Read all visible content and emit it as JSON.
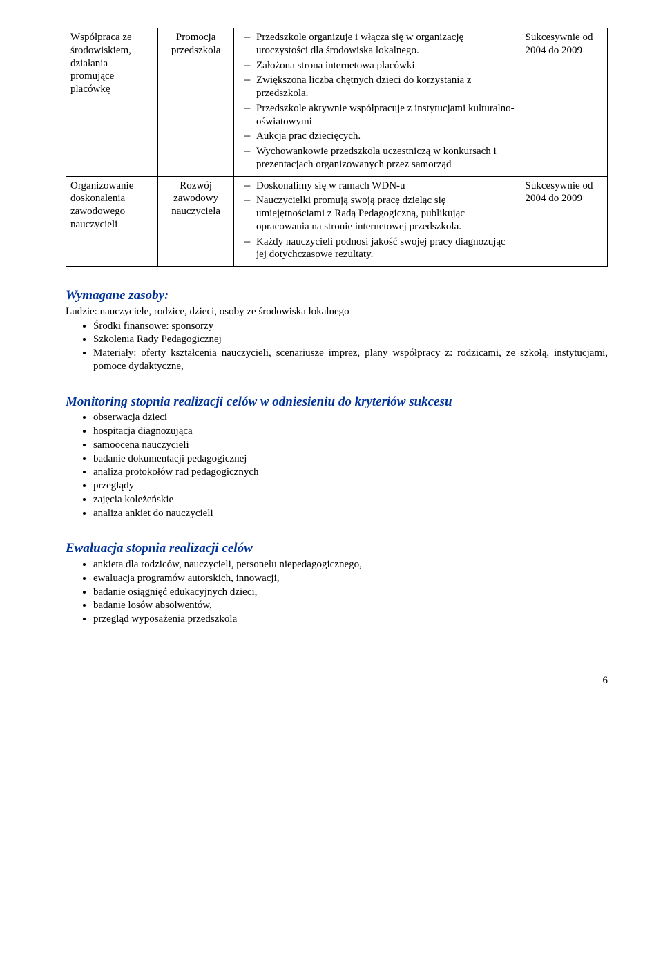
{
  "table": {
    "rows": [
      {
        "col1": "Współpraca ze środowiskiem, działania promujące placówkę",
        "col2": "Promocja przedszkola",
        "items": [
          "Przedszkole organizuje i włącza się w organizację uroczystości dla środowiska lokalnego.",
          "Założona strona internetowa placówki",
          "Zwiększona liczba chętnych dzieci do korzystania z  przedszkola.",
          "Przedszkole aktywnie  współpracuje z instytucjami  kulturalno-oświatowymi",
          "Aukcja prac dziecięcych.",
          "Wychowankowie przedszkola uczestniczą w  konkursach i prezentacjach organizowanych przez  samorząd"
        ],
        "col4": "Sukcesywnie od 2004 do 2009"
      },
      {
        "col1": "Organizowanie doskonalenia zawodowego nauczycieli",
        "col2": "Rozwój zawodowy nauczyciela",
        "items": [
          "Doskonalimy się w ramach WDN-u",
          "Nauczycielki promują swoją pracę dzieląc się  umiejętnościami z Radą Pedagogiczną, publikując opracowania na stronie internetowej przedszkola.",
          "Każdy nauczycieli podnosi jakość swojej pracy diagnozując jej dotychczasowe rezultaty."
        ],
        "col4": "Sukcesywnie od 2004 do 2009"
      }
    ]
  },
  "section1": {
    "title": "Wymagane zasoby:",
    "intro": "Ludzie: nauczyciele, rodzice, dzieci, osoby ze środowiska lokalnego",
    "items": [
      "Środki finansowe: sponsorzy",
      "Szkolenia Rady Pedagogicznej",
      "Materiały: oferty kształcenia nauczycieli, scenariusze imprez, plany współpracy z: rodzicami, ze szkołą, instytucjami, pomoce dydaktyczne,"
    ]
  },
  "section2": {
    "title": "Monitoring stopnia realizacji celów w odniesieniu do kryteriów sukcesu",
    "items": [
      "obserwacja dzieci",
      "hospitacja diagnozująca",
      "samoocena nauczycieli",
      "badanie dokumentacji pedagogicznej",
      "analiza protokołów rad pedagogicznych",
      "przeglądy",
      "zajęcia koleżeńskie",
      "analiza ankiet do nauczycieli"
    ]
  },
  "section3": {
    "title": "Ewaluacja stopnia realizacji celów",
    "items": [
      "ankieta dla rodziców, nauczycieli, personelu niepedagogicznego,",
      "ewaluacja programów autorskich, innowacji,",
      "badanie osiągnięć edukacyjnych dzieci,",
      "badanie losów absolwentów,",
      "przegląd wyposażenia przedszkola"
    ]
  },
  "pagenum": "6"
}
